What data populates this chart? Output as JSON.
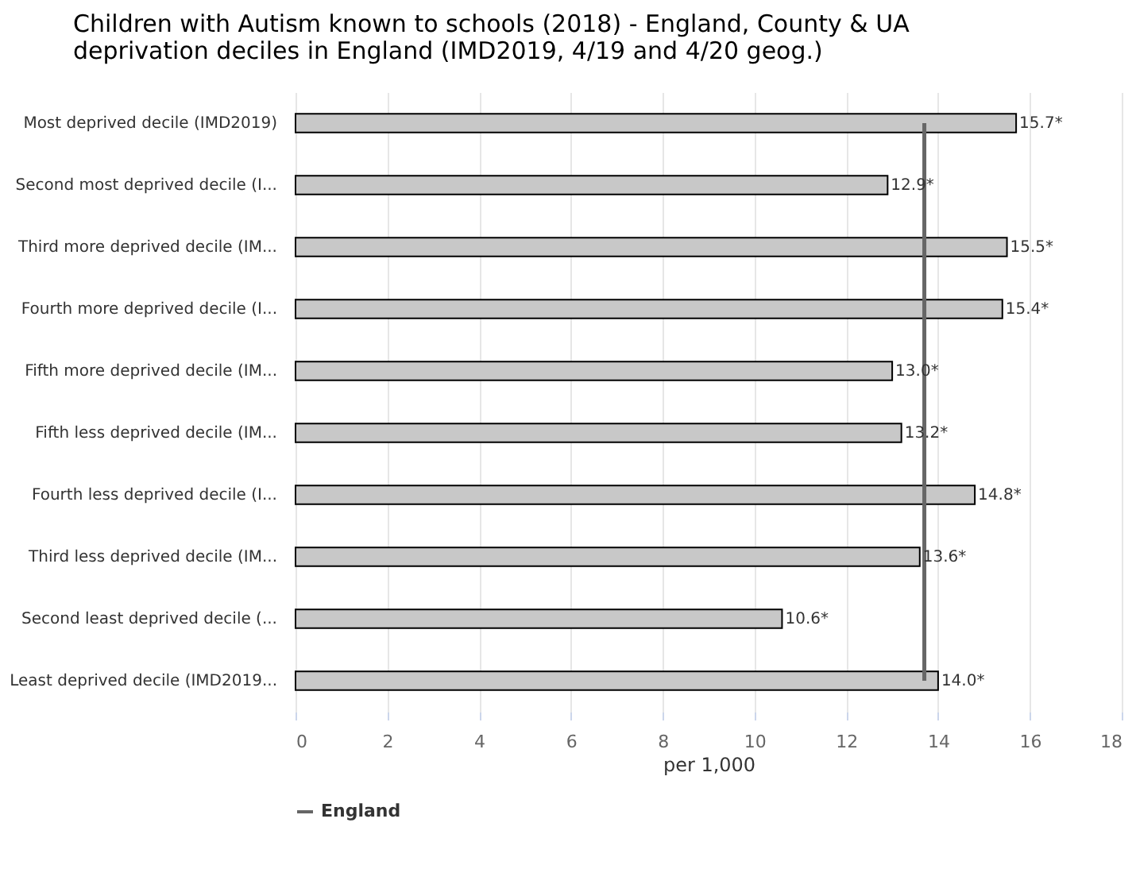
{
  "chart_data": {
    "type": "bar",
    "orientation": "horizontal",
    "title": "Children with Autism known to schools (2018) - England, County & UA deprivation deciles in England (IMD2019, 4/19 and 4/20 geog.)",
    "xlabel": "per 1,000",
    "categories": [
      "Most deprived decile (IMD2019)",
      "Second most deprived decile (I...",
      "Third more deprived decile (IM...",
      "Fourth more deprived decile (I...",
      "Fifth more deprived decile (IM...",
      "Fifth less deprived decile (IM...",
      "Fourth less deprived decile (I...",
      "Third less deprived decile (IM...",
      "Second least deprived decile (...",
      "Least deprived decile (IMD2019..."
    ],
    "series": [
      {
        "color": "#c8c8c8",
        "values": [
          15.7,
          12.9,
          15.5,
          15.4,
          13.0,
          13.2,
          14.8,
          13.6,
          10.6,
          14.0
        ],
        "value_labels": [
          "15.7*",
          "12.9*",
          "15.5*",
          "15.4*",
          "13.0*",
          "13.2*",
          "14.8*",
          "13.6*",
          "10.6*",
          "14.0*"
        ]
      },
      {
        "name": "England",
        "type": "line",
        "color": "#666666",
        "values": [
          13.7,
          13.7,
          13.7,
          13.7,
          13.7,
          13.7,
          13.7,
          13.7,
          13.7,
          13.7
        ]
      }
    ],
    "xlim": [
      0,
      18
    ],
    "xticks": [
      0,
      2,
      4,
      6,
      8,
      10,
      12,
      14,
      16,
      18
    ],
    "grid": "x",
    "legend": "bottom"
  }
}
